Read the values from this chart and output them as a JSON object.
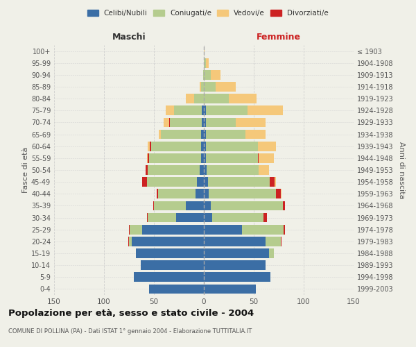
{
  "age_groups": [
    "0-4",
    "5-9",
    "10-14",
    "15-19",
    "20-24",
    "25-29",
    "30-34",
    "35-39",
    "40-44",
    "45-49",
    "50-54",
    "55-59",
    "60-64",
    "65-69",
    "70-74",
    "75-79",
    "80-84",
    "85-89",
    "90-94",
    "95-99",
    "100+"
  ],
  "birth_years": [
    "1999-2003",
    "1994-1998",
    "1989-1993",
    "1984-1988",
    "1979-1983",
    "1974-1978",
    "1969-1973",
    "1964-1968",
    "1959-1963",
    "1954-1958",
    "1949-1953",
    "1944-1948",
    "1939-1943",
    "1934-1938",
    "1929-1933",
    "1924-1928",
    "1919-1923",
    "1914-1918",
    "1909-1913",
    "1904-1908",
    "≤ 1903"
  ],
  "colors": {
    "celibi": "#3B6EA5",
    "coniugati": "#B5CC8E",
    "vedovi": "#F5C87A",
    "divorziati": "#CC2222"
  },
  "maschi": {
    "celibi": [
      55,
      70,
      63,
      68,
      72,
      62,
      28,
      18,
      8,
      7,
      4,
      3,
      3,
      3,
      2,
      2,
      0,
      0,
      0,
      0,
      0
    ],
    "coniugati": [
      0,
      0,
      0,
      0,
      3,
      12,
      28,
      32,
      38,
      50,
      52,
      52,
      50,
      40,
      32,
      28,
      10,
      3,
      1,
      0,
      0
    ],
    "vedovi": [
      0,
      0,
      0,
      0,
      0,
      0,
      0,
      0,
      0,
      0,
      0,
      1,
      2,
      2,
      5,
      8,
      8,
      1,
      0,
      0,
      0
    ],
    "divorziati": [
      0,
      0,
      0,
      0,
      1,
      1,
      1,
      1,
      1,
      5,
      2,
      1,
      1,
      0,
      1,
      0,
      0,
      0,
      0,
      0,
      0
    ]
  },
  "femmine": {
    "celibi": [
      52,
      67,
      62,
      65,
      62,
      38,
      8,
      7,
      5,
      4,
      3,
      2,
      2,
      2,
      2,
      2,
      0,
      0,
      0,
      0,
      0
    ],
    "coniugati": [
      0,
      0,
      0,
      5,
      15,
      42,
      52,
      72,
      67,
      62,
      52,
      52,
      52,
      40,
      30,
      42,
      25,
      12,
      7,
      2,
      0
    ],
    "vedovi": [
      0,
      0,
      0,
      0,
      0,
      0,
      0,
      0,
      1,
      1,
      10,
      15,
      18,
      20,
      30,
      35,
      28,
      20,
      10,
      3,
      1
    ],
    "divorziati": [
      0,
      0,
      0,
      0,
      1,
      1,
      3,
      2,
      5,
      5,
      0,
      1,
      0,
      0,
      0,
      0,
      0,
      0,
      0,
      0,
      0
    ]
  },
  "title": "Popolazione per età, sesso e stato civile - 2004",
  "subtitle": "COMUNE DI POLLINA (PA) - Dati ISTAT 1° gennaio 2004 - Elaborazione TUTTITALIA.IT",
  "xlabel_left": "Maschi",
  "xlabel_right": "Femmine",
  "ylabel_left": "Fasce di età",
  "ylabel_right": "Anni di nascita",
  "xlim": 150,
  "bg_color": "#f0f0e8",
  "grid_color": "#cccccc"
}
